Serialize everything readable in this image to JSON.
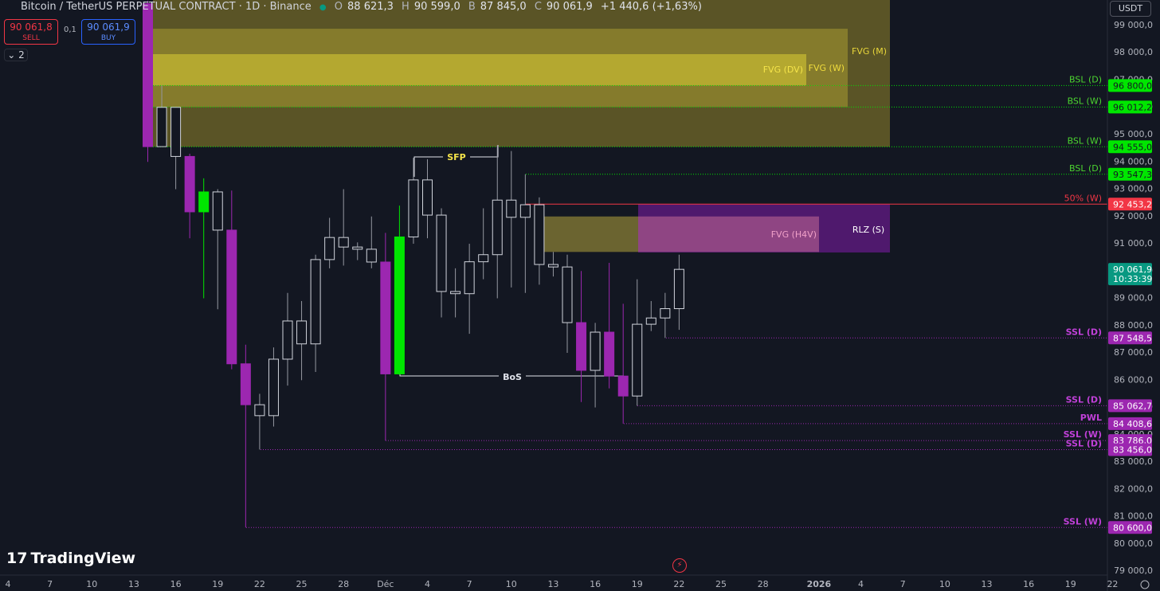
{
  "header": {
    "symbol": "Bitcoin / TetherUS PERPETUAL CONTRACT · 1D · Binance",
    "ohlc": [
      {
        "key": "O",
        "value": "88 621,3"
      },
      {
        "key": "H",
        "value": "90 599,0"
      },
      {
        "key": "B",
        "value": "87 845,0"
      },
      {
        "key": "C",
        "value": "90 061,9"
      }
    ],
    "change": "+1 440,6 (+1,63%)"
  },
  "trade": {
    "sell_price": "90 061,8",
    "sell": "SELL",
    "spread": "0,1",
    "buy_price": "90 061,9",
    "buy": "BUY",
    "layers": "2"
  },
  "currency": "USDT",
  "brand": "TradingView",
  "chart_data": {
    "type": "candlestick",
    "ylim": [
      78915,
      99934
    ],
    "yticks": [
      {
        "value": 99000,
        "label": "99 000,0"
      },
      {
        "value": 98000,
        "label": "98 000,0"
      },
      {
        "value": 97000,
        "label": "97 000,0"
      },
      {
        "value": 96000,
        "label": "96 000,0"
      },
      {
        "value": 95000,
        "label": "95 000,0"
      },
      {
        "value": 94000,
        "label": "94 000,0"
      },
      {
        "value": 93000,
        "label": "93 000,0"
      },
      {
        "value": 92000,
        "label": "92 000,0"
      },
      {
        "value": 91000,
        "label": "91 000,0"
      },
      {
        "value": 90000,
        "label": "90 000,0"
      },
      {
        "value": 89000,
        "label": "89 000,0"
      },
      {
        "value": 88000,
        "label": "88 000,0"
      },
      {
        "value": 87000,
        "label": "87 000,0"
      },
      {
        "value": 86000,
        "label": "86 000,0"
      },
      {
        "value": 85000,
        "label": "85 000,0"
      },
      {
        "value": 84000,
        "label": "84 000,0"
      },
      {
        "value": 83000,
        "label": "83 000,0"
      },
      {
        "value": 82000,
        "label": "82 000,0"
      },
      {
        "value": 81000,
        "label": "81 000,0"
      },
      {
        "value": 80000,
        "label": "80 000,0"
      },
      {
        "value": 79000,
        "label": "79 000,0"
      }
    ],
    "x_labels": [
      "4",
      "7",
      "10",
      "13",
      "16",
      "19",
      "22",
      "25",
      "28",
      "Déc",
      "4",
      "7",
      "10",
      "13",
      "16",
      "19",
      "22",
      "25",
      "28",
      "2026",
      "4",
      "7",
      "10",
      "13",
      "16",
      "19",
      "22"
    ],
    "open": [
      99800,
      94560,
      96000,
      94200,
      92170,
      92900,
      91500,
      86600,
      85100,
      84700,
      86770,
      88170,
      87330,
      90420,
      91230,
      90880,
      90800,
      90330,
      86230,
      91250,
      93340,
      92050,
      89250,
      89170,
      90340,
      90600,
      92600,
      91970,
      92430,
      90240,
      90150,
      88110,
      86360,
      87760,
      86150,
      85420,
      88050,
      88280,
      88621.3
    ],
    "high": [
      99900,
      96800,
      96000,
      94300,
      93400,
      93000,
      92950,
      87300,
      85500,
      87200,
      89200,
      88900,
      90600,
      91950,
      93000,
      91050,
      92000,
      91400,
      92400,
      94150,
      94100,
      92300,
      90100,
      91000,
      92300,
      94600,
      94400,
      93547,
      92700,
      90700,
      90600,
      90000,
      88100,
      90300,
      88800,
      89700,
      88900,
      89200,
      90599
    ],
    "low": [
      94000,
      94550,
      93000,
      91200,
      89000,
      88600,
      86400,
      80600,
      83456,
      84300,
      85800,
      86000,
      86300,
      90100,
      90200,
      90400,
      90100,
      83786,
      86200,
      91000,
      91200,
      88300,
      88300,
      87700,
      89700,
      89000,
      89400,
      89200,
      89500,
      89800,
      87000,
      85200,
      85000,
      85700,
      84408,
      85062,
      87800,
      87548,
      87845
    ],
    "close": [
      94560,
      96000,
      94200,
      92170,
      92900,
      91500,
      86600,
      85100,
      84700,
      86770,
      88170,
      87330,
      90420,
      91230,
      90880,
      90800,
      90330,
      86230,
      91250,
      93340,
      92050,
      89250,
      89170,
      90340,
      90600,
      92600,
      91970,
      92430,
      90240,
      90150,
      88110,
      86360,
      87760,
      86150,
      85420,
      88050,
      88280,
      88621.3,
      90061.9
    ],
    "colors": [
      "#9c27b0",
      "#131722",
      "#131722",
      "#9c27b0",
      "#00e600",
      "#131722",
      "#9c27b0",
      "#9c27b0",
      "#131722",
      "#131722",
      "#131722",
      "#131722",
      "#131722",
      "#131722",
      "#131722",
      "#131722",
      "#131722",
      "#9c27b0",
      "#00e600",
      "#131722",
      "#131722",
      "#131722",
      "#131722",
      "#131722",
      "#131722",
      "#131722",
      "#131722",
      "#131722",
      "#131722",
      "#131722",
      "#131722",
      "#9c27b0",
      "#131722",
      "#9c27b0",
      "#9c27b0",
      "#131722",
      "#131722",
      "#131722",
      "#131722"
    ],
    "zones": [
      {
        "label": "FVG (M)",
        "top": 99934,
        "bottom": 94555,
        "color": "#5a5426",
        "label_color": "#e8d63a"
      },
      {
        "label": "FVG (W)",
        "top": 98880,
        "bottom": 96012.2,
        "color": "#857b2c",
        "label_color": "#f0dc3c"
      },
      {
        "label": "FVG (DV)",
        "top": 97950,
        "bottom": 96800,
        "color": "#b4a830",
        "label_color": "#f5e44a"
      },
      {
        "label": "FVG (H4V)",
        "top": 92000,
        "bottom": 90700,
        "color": "#6b6430",
        "label_color": "#f0a0c8"
      },
      {
        "label": "RLZ (S)",
        "top": 92453,
        "bottom": 90680,
        "color": "#5a1a7a",
        "label_color": "#ffffff"
      }
    ],
    "levels": [
      {
        "label": "BSL (D)",
        "value": 96800,
        "value_label": "96 800,0",
        "color": "#00e600"
      },
      {
        "label": "BSL (W)",
        "value": 96012.2,
        "value_label": "96 012,2",
        "color": "#00e600"
      },
      {
        "label": "BSL (W)",
        "value": 94555,
        "value_label": "94 555,0",
        "color": "#00e600"
      },
      {
        "label": "BSL (D)",
        "value": 93547.3,
        "value_label": "93 547,3",
        "color": "#00e600"
      },
      {
        "label": "50% (W)",
        "value": 92453.2,
        "value_label": "92 453,2",
        "color": "#f23645"
      },
      {
        "label": "SSL (D)",
        "value": 87548.5,
        "value_label": "87 548,5",
        "color": "#9c27b0"
      },
      {
        "label": "SSL (D)",
        "value": 85062.7,
        "value_label": "85 062,7",
        "color": "#9c27b0"
      },
      {
        "label": "PWL",
        "value": 84408.6,
        "value_label": "84 408,6",
        "color": "#9c27b0"
      },
      {
        "label": "SSL (W)",
        "value": 83786,
        "value_label": "83 786,0",
        "color": "#9c27b0"
      },
      {
        "label": "SSL (D)",
        "value": 83456,
        "value_label": "83 456,0",
        "color": "#9c27b0"
      },
      {
        "label": "SSL (W)",
        "value": 80600,
        "value_label": "80 600,0",
        "color": "#9c27b0"
      }
    ],
    "last": {
      "value": 90061.9,
      "label": "90 061,9",
      "countdown": "10:33:39",
      "color": "#089981"
    },
    "annotations": [
      "SFP",
      "BoS"
    ]
  }
}
